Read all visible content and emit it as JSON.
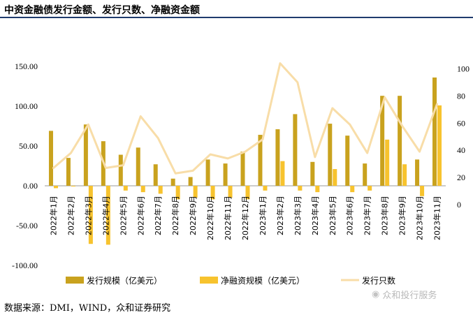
{
  "title": "中资金融债发行金额、发行只数、净融资金额",
  "source": "数据来源：DMI，WIND，众和证券研究",
  "watermark": "众和投行服务",
  "watermark_icon": "wechat-icon",
  "colors": {
    "issuance": "#C9A21E",
    "net_financing": "#F7C32E",
    "count": "#F8DDA8",
    "title_rule": "#1F3B6D"
  },
  "chart_data": {
    "type": "bar",
    "categories": [
      "2022年1月",
      "2022年2月",
      "2022年3月",
      "2022年4月",
      "2022年5月",
      "2022年6月",
      "2022年7月",
      "2022年8月",
      "2022年9月",
      "2022年10月",
      "2022年11月",
      "2022年12月",
      "2023年1月",
      "2023年2月",
      "2023年3月",
      "2023年4月",
      "2023年5月",
      "2023年6月",
      "2023年7月",
      "2023年8月",
      "2023年9月",
      "2023年10月",
      "2023年11月"
    ],
    "series": [
      {
        "name": "发行规模（亿美元）",
        "type": "bar",
        "axis": "left",
        "values": [
          69,
          35,
          77,
          56,
          39,
          48,
          27,
          9,
          11,
          33,
          28,
          43,
          64,
          71,
          90,
          30,
          78,
          63,
          28,
          113,
          113,
          33,
          136
        ]
      },
      {
        "name": "净融资规模（亿美元）",
        "type": "bar",
        "axis": "left",
        "values": [
          -3,
          0,
          -73,
          -74,
          -6,
          -8,
          -10,
          -17,
          -15,
          -17,
          -15,
          -17,
          -6,
          31,
          -6,
          -8,
          21,
          -8,
          -6,
          58,
          27,
          -13,
          101
        ]
      },
      {
        "name": "发行只数",
        "type": "line",
        "axis": "right",
        "values": [
          27,
          38,
          59,
          27,
          29,
          65,
          49,
          23,
          25,
          37,
          34,
          39,
          48,
          104,
          90,
          35,
          71,
          59,
          38,
          79,
          58,
          39,
          74
        ]
      }
    ],
    "left_axis": {
      "ylim": [
        -100,
        150
      ],
      "ticks": [
        "-100.00",
        "-50.00",
        "0.00",
        "50.00",
        "100.00",
        "150.00"
      ]
    },
    "right_axis": {
      "ylim": [
        0,
        110
      ],
      "ticks": [
        "0",
        "20",
        "40",
        "60",
        "80",
        "100"
      ]
    },
    "legend_position": "bottom"
  }
}
